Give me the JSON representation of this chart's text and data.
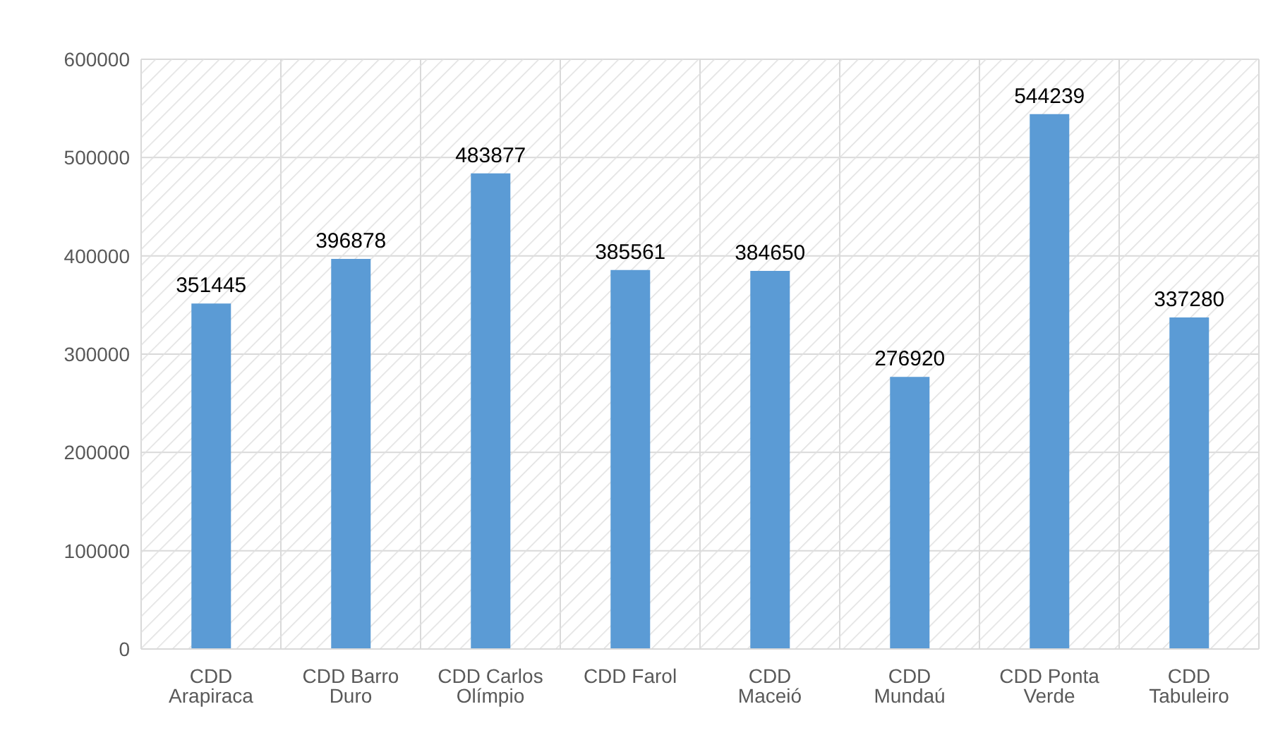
{
  "chart_data": {
    "type": "bar",
    "categories": [
      "CDD Arapiraca",
      "CDD Barro Duro",
      "CDD Carlos Olímpio",
      "CDD Farol",
      "CDD Maceió",
      "CDD Mundaú",
      "CDD Ponta Verde",
      "CDD Tabuleiro"
    ],
    "values": [
      351445,
      396878,
      483877,
      385561,
      384650,
      276920,
      544239,
      337280
    ],
    "color": "#5b9bd5",
    "ylim": [
      0,
      600000
    ],
    "yticks": [
      0,
      100000,
      200000,
      300000,
      400000,
      500000,
      600000
    ],
    "grid": true,
    "data_labels": true
  }
}
